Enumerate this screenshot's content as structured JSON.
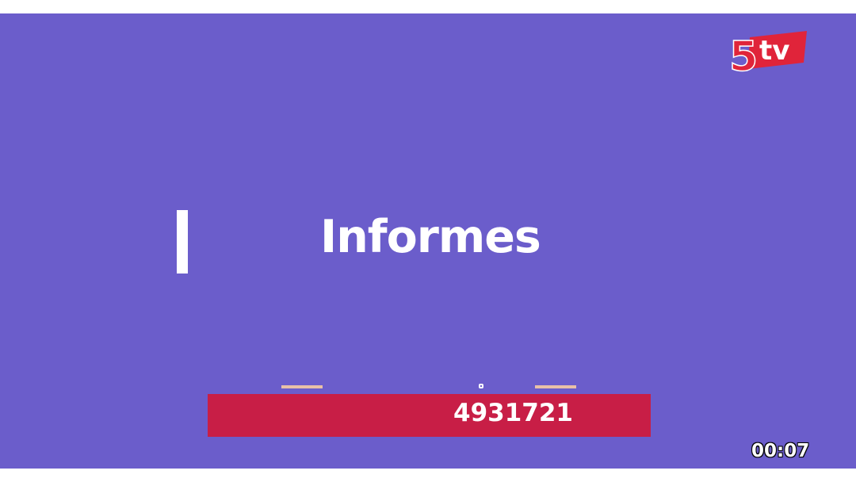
{
  "channel": {
    "logo_text": "5tv",
    "logo_colors": {
      "red": "#e0243a",
      "white": "#ffffff"
    }
  },
  "slide": {
    "title": "Informes",
    "background_color": "#6b5dcb"
  },
  "contact_bar": {
    "phone_number": "4931721",
    "bar_color": "#c81e46",
    "accent_dash_color": "#e8c0a8"
  },
  "player": {
    "elapsed_time": "00:07"
  }
}
